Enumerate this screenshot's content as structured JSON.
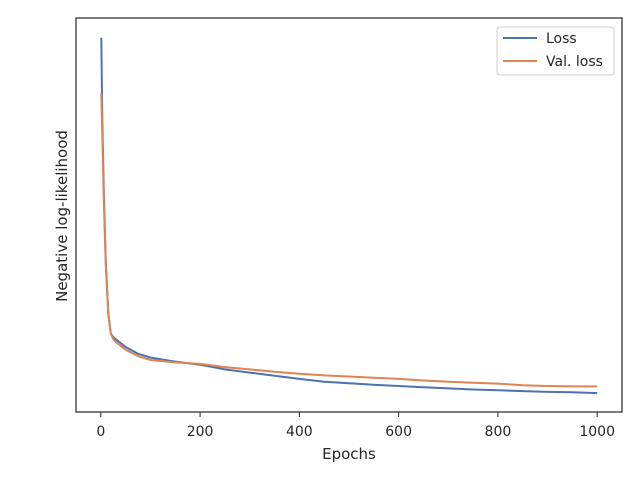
{
  "chart_data": {
    "type": "line",
    "title": "",
    "xlabel": "Epochs",
    "ylabel": "Negative log-likelihood",
    "xlim": [
      -50,
      1050
    ],
    "ylim": [
      0.0,
      1.0
    ],
    "y_tick_labels_shown": false,
    "x_ticks": [
      0,
      200,
      400,
      600,
      800,
      1000
    ],
    "x_tick_labels": [
      "0",
      "200",
      "400",
      "600",
      "800",
      "1000"
    ],
    "grid": false,
    "legend_position": "top-right",
    "series": [
      {
        "name": "Loss",
        "color": "#4c72b0",
        "points": [
          [
            1,
            0.95
          ],
          [
            3,
            0.74
          ],
          [
            6,
            0.56
          ],
          [
            10,
            0.38
          ],
          [
            15,
            0.25
          ],
          [
            20,
            0.2
          ],
          [
            25,
            0.19
          ],
          [
            30,
            0.185
          ],
          [
            40,
            0.175
          ],
          [
            50,
            0.165
          ],
          [
            75,
            0.148
          ],
          [
            100,
            0.138
          ],
          [
            150,
            0.128
          ],
          [
            200,
            0.12
          ],
          [
            250,
            0.108
          ],
          [
            300,
            0.1
          ],
          [
            350,
            0.092
          ],
          [
            400,
            0.084
          ],
          [
            450,
            0.077
          ],
          [
            500,
            0.073
          ],
          [
            550,
            0.069
          ],
          [
            600,
            0.066
          ],
          [
            650,
            0.063
          ],
          [
            700,
            0.06
          ],
          [
            750,
            0.057
          ],
          [
            800,
            0.055
          ],
          [
            850,
            0.053
          ],
          [
            900,
            0.051
          ],
          [
            950,
            0.05
          ],
          [
            1000,
            0.048
          ]
        ]
      },
      {
        "name": "Val. loss",
        "color": "#dd8452",
        "points": [
          [
            1,
            0.81
          ],
          [
            3,
            0.7
          ],
          [
            6,
            0.54
          ],
          [
            10,
            0.37
          ],
          [
            15,
            0.25
          ],
          [
            20,
            0.2
          ],
          [
            25,
            0.185
          ],
          [
            30,
            0.178
          ],
          [
            40,
            0.168
          ],
          [
            50,
            0.158
          ],
          [
            75,
            0.142
          ],
          [
            100,
            0.132
          ],
          [
            150,
            0.126
          ],
          [
            200,
            0.122
          ],
          [
            250,
            0.114
          ],
          [
            300,
            0.108
          ],
          [
            350,
            0.102
          ],
          [
            400,
            0.097
          ],
          [
            450,
            0.093
          ],
          [
            500,
            0.09
          ],
          [
            550,
            0.087
          ],
          [
            600,
            0.084
          ],
          [
            650,
            0.08
          ],
          [
            700,
            0.077
          ],
          [
            750,
            0.074
          ],
          [
            800,
            0.072
          ],
          [
            850,
            0.068
          ],
          [
            900,
            0.066
          ],
          [
            950,
            0.065
          ],
          [
            1000,
            0.065
          ]
        ]
      }
    ]
  }
}
